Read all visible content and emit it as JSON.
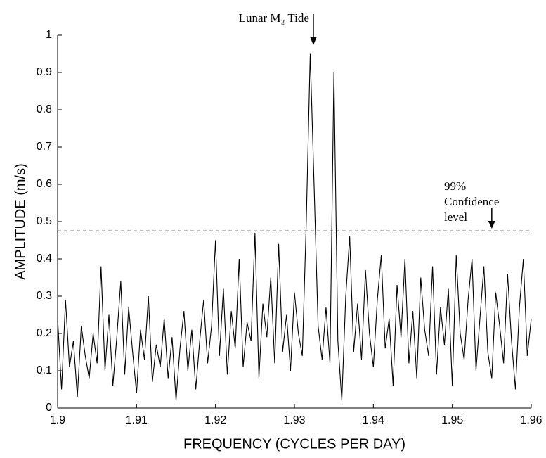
{
  "chart_data": {
    "type": "line",
    "xlabel": "FREQUENCY (CYCLES PER DAY)",
    "ylabel": "AMPLITUDE (m/s)",
    "color": "#000000",
    "x": [
      1.9,
      1.9005,
      1.901,
      1.9015,
      1.902,
      1.9025,
      1.903,
      1.9035,
      1.904,
      1.9045,
      1.905,
      1.9055,
      1.906,
      1.9065,
      1.907,
      1.9075,
      1.908,
      1.9085,
      1.909,
      1.9095,
      1.91,
      1.9105,
      1.911,
      1.9115,
      1.912,
      1.9125,
      1.913,
      1.9135,
      1.914,
      1.9145,
      1.915,
      1.9155,
      1.916,
      1.9165,
      1.917,
      1.9175,
      1.918,
      1.9185,
      1.919,
      1.9195,
      1.92,
      1.9205,
      1.921,
      1.9215,
      1.922,
      1.9225,
      1.923,
      1.9235,
      1.924,
      1.9245,
      1.925,
      1.9255,
      1.926,
      1.9265,
      1.927,
      1.9275,
      1.928,
      1.9285,
      1.929,
      1.9295,
      1.93,
      1.9305,
      1.931,
      1.9315,
      1.932,
      1.9325,
      1.933,
      1.9335,
      1.934,
      1.9345,
      1.935,
      1.9355,
      1.936,
      1.9365,
      1.937,
      1.9375,
      1.938,
      1.9385,
      1.939,
      1.9395,
      1.94,
      1.9405,
      1.941,
      1.9415,
      1.942,
      1.9425,
      1.943,
      1.9435,
      1.944,
      1.9445,
      1.945,
      1.9455,
      1.946,
      1.9465,
      1.947,
      1.9475,
      1.948,
      1.9485,
      1.949,
      1.9495,
      1.95,
      1.9505,
      1.951,
      1.9515,
      1.952,
      1.9525,
      1.953,
      1.9535,
      1.954,
      1.9545,
      1.955,
      1.9555,
      1.956,
      1.9565,
      1.957,
      1.9575,
      1.958,
      1.9585,
      1.959,
      1.9595,
      1.96
    ],
    "values": [
      0.24,
      0.05,
      0.29,
      0.11,
      0.18,
      0.03,
      0.22,
      0.14,
      0.08,
      0.2,
      0.12,
      0.38,
      0.1,
      0.25,
      0.06,
      0.19,
      0.34,
      0.09,
      0.27,
      0.15,
      0.04,
      0.21,
      0.13,
      0.3,
      0.07,
      0.17,
      0.11,
      0.24,
      0.08,
      0.19,
      0.02,
      0.16,
      0.26,
      0.1,
      0.21,
      0.05,
      0.18,
      0.29,
      0.12,
      0.22,
      0.45,
      0.14,
      0.32,
      0.09,
      0.26,
      0.16,
      0.4,
      0.11,
      0.23,
      0.18,
      0.47,
      0.08,
      0.28,
      0.19,
      0.35,
      0.12,
      0.44,
      0.15,
      0.25,
      0.1,
      0.31,
      0.2,
      0.14,
      0.5,
      0.95,
      0.59,
      0.22,
      0.13,
      0.27,
      0.12,
      0.9,
      0.18,
      0.02,
      0.3,
      0.46,
      0.15,
      0.28,
      0.13,
      0.37,
      0.2,
      0.11,
      0.29,
      0.41,
      0.16,
      0.24,
      0.06,
      0.33,
      0.19,
      0.4,
      0.12,
      0.26,
      0.08,
      0.35,
      0.21,
      0.14,
      0.38,
      0.09,
      0.27,
      0.17,
      0.32,
      0.06,
      0.41,
      0.2,
      0.13,
      0.29,
      0.4,
      0.1,
      0.24,
      0.38,
      0.15,
      0.08,
      0.31,
      0.22,
      0.12,
      0.36,
      0.18,
      0.05,
      0.27,
      0.4,
      0.14,
      0.24
    ],
    "xlim": [
      1.9,
      1.96
    ],
    "xticks": [
      1.9,
      1.91,
      1.92,
      1.93,
      1.94,
      1.95,
      1.96
    ],
    "ylim": [
      0,
      1
    ],
    "yticks": [
      0,
      0.1,
      0.2,
      0.3,
      0.4,
      0.5,
      0.6,
      0.7,
      0.8,
      0.9,
      1
    ],
    "confidence_level": 0.475,
    "annotations": [
      {
        "text": "Lunar M₂ Tide",
        "x": 1.9324
      },
      {
        "lines": [
          "99%",
          "Confidence",
          "level"
        ],
        "x": 1.955
      }
    ]
  }
}
